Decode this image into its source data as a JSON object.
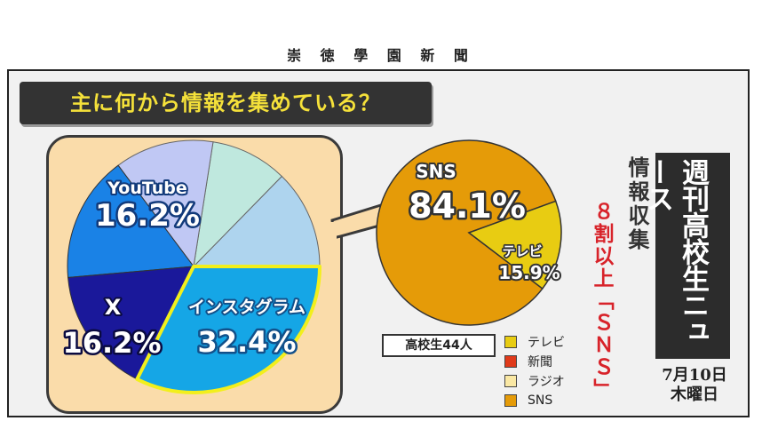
{
  "masthead": "崇 徳 學 園 新 聞",
  "headline": "主に何から情報を集めている？",
  "side_title": "情報収集",
  "side_sub": "８割以上「ＳＮＳ」",
  "brand": "週刊高校生ニュース",
  "date": {
    "line1": "7月10日",
    "line2": "木曜日"
  },
  "sample": "高校生44人",
  "colors": {
    "sns": "#e59b08",
    "tv": "#e8cc12",
    "news": "#e03a1a",
    "radio": "#fae8a4",
    "instagram": "#15a6e6",
    "x": "#1a189a",
    "youtube": "#1a82e6",
    "other_a": "#aed4ee",
    "other_b": "#bfe8de",
    "other_c": "#c0c8f4"
  },
  "chart_data": [
    {
      "type": "pie",
      "title": "主に何から情報を集めている？",
      "slices": [
        {
          "label": "SNS",
          "value": 84.1,
          "value_label": "84.1%"
        },
        {
          "label": "テレビ",
          "value": 15.9,
          "value_label": "15.9%"
        }
      ],
      "legend": [
        "テレビ",
        "新聞",
        "ラジオ",
        "SNS"
      ],
      "legend_placement": "bottom"
    },
    {
      "type": "pie",
      "title": "",
      "slices": [
        {
          "label": "インスタグラム",
          "value": 32.4,
          "value_label": "32.4%"
        },
        {
          "label": "X",
          "value": 16.2,
          "value_label": "16.2%"
        },
        {
          "label": "YouTube",
          "value": 16.2,
          "value_label": "16.2%"
        }
      ]
    }
  ],
  "legend": [
    {
      "label": "テレビ",
      "color_key": "tv"
    },
    {
      "label": "新聞",
      "color_key": "news"
    },
    {
      "label": "ラジオ",
      "color_key": "radio"
    },
    {
      "label": "SNS",
      "color_key": "sns"
    }
  ]
}
